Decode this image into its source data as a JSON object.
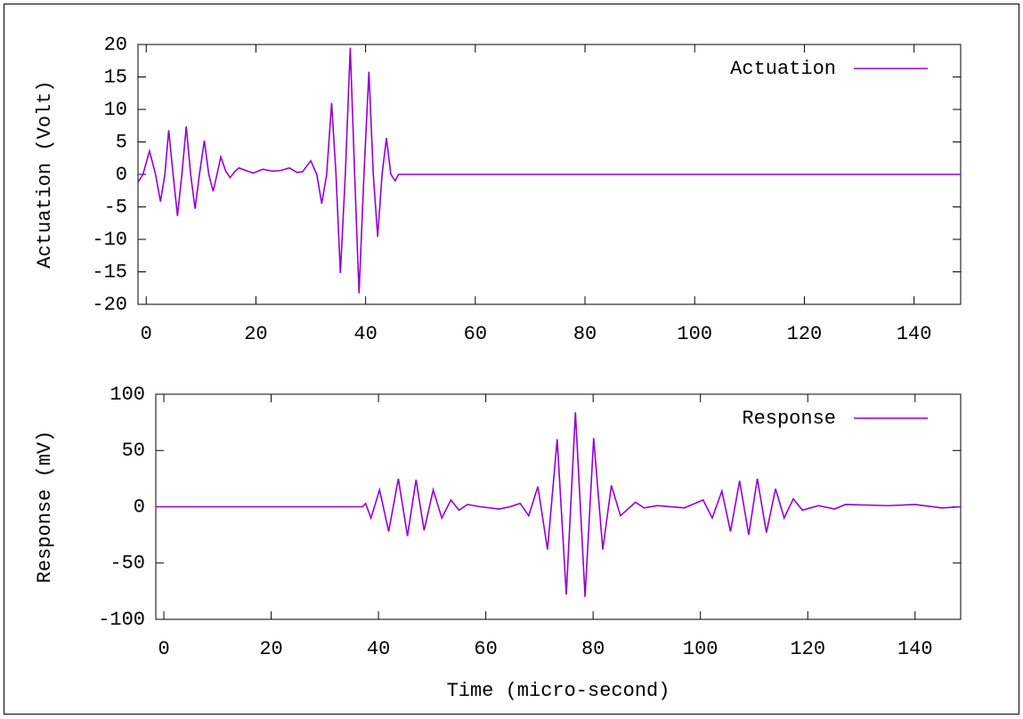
{
  "chart_data": [
    {
      "type": "line",
      "ylabel": "Actuation (Volt)",
      "x": [
        -1.5,
        -0.6,
        0.6,
        1.7,
        2.6,
        3.4,
        4.1,
        4.9,
        5.7,
        6.5,
        7.3,
        8.1,
        8.9,
        9.7,
        10.6,
        11.4,
        12.2,
        12.9,
        13.6,
        14.5,
        15.3,
        16.1,
        16.9,
        18.5,
        19.5,
        21.3,
        23,
        24.5,
        26.1,
        27.5,
        28.5,
        30,
        31.1,
        32,
        32.9,
        33.8,
        34.6,
        35.4,
        36.3,
        37.2,
        38,
        38.8,
        39.7,
        40.6,
        41.4,
        42.2,
        43,
        43.8,
        44.6,
        45.4,
        46,
        148.5
      ],
      "series": [
        {
          "name": "Actuation",
          "color": "#9400d3",
          "values": [
            -1.2,
            0,
            3.6,
            0,
            -4.2,
            0,
            6.8,
            0,
            -6.4,
            0,
            7.4,
            0,
            -5.3,
            0,
            5.2,
            0,
            -2.6,
            0,
            2.7,
            0.5,
            -0.5,
            0.4,
            1.0,
            0.5,
            0.2,
            0.8,
            0.5,
            0.6,
            1.0,
            0.3,
            0.4,
            2.1,
            0,
            -4.5,
            0,
            11,
            0,
            -15.2,
            0,
            19.5,
            0,
            -18.3,
            0,
            15.8,
            0,
            -9.6,
            0,
            5.6,
            0,
            -1.0,
            0,
            0
          ]
        }
      ],
      "xlim": [
        -1.5,
        148.5
      ],
      "xticks": [
        0,
        20,
        40,
        60,
        80,
        100,
        120,
        140
      ],
      "ylim": [
        -20,
        20
      ],
      "yticks": [
        -20,
        -15,
        -10,
        -5,
        0,
        5,
        10,
        15,
        20
      ],
      "legend": "upper right"
    },
    {
      "type": "line",
      "ylabel": "Response (mV)",
      "xlabel": "Time (micro-second)",
      "x": [
        -1.5,
        37,
        37.6,
        38.6,
        40.2,
        41.9,
        43.7,
        45.4,
        47,
        48.5,
        50.2,
        51.8,
        53.5,
        55,
        56.6,
        59,
        62.5,
        64.5,
        66.4,
        68,
        69.7,
        71.5,
        73.3,
        75,
        76.7,
        78.5,
        80.1,
        81.8,
        83.4,
        85.1,
        87.9,
        89.5,
        92,
        97,
        100.5,
        102.2,
        104,
        105.6,
        107.3,
        109,
        110.6,
        112.3,
        114,
        115.6,
        117.3,
        119,
        122,
        125,
        127,
        135,
        140,
        145,
        148.5
      ],
      "series": [
        {
          "name": "Response",
          "color": "#9400d3",
          "values": [
            0,
            0,
            3,
            -10,
            15,
            -22,
            25,
            -26,
            24,
            -21,
            15,
            -10,
            6,
            -3,
            2,
            0,
            -2,
            0,
            3,
            -8,
            18,
            -38,
            60,
            -78,
            84,
            -80,
            61,
            -38,
            19,
            -8,
            4,
            -1,
            1,
            -1,
            6,
            -10,
            14,
            -22,
            23,
            -25,
            25,
            -23,
            16,
            -10,
            7,
            -3,
            1,
            -2,
            2,
            1,
            2,
            -1,
            0
          ]
        }
      ],
      "xlim": [
        -1.5,
        148.5
      ],
      "xticks": [
        0,
        20,
        40,
        60,
        80,
        100,
        120,
        140
      ],
      "ylim": [
        -100,
        100
      ],
      "yticks": [
        -100,
        -50,
        0,
        50,
        100
      ],
      "legend": "upper right"
    }
  ]
}
